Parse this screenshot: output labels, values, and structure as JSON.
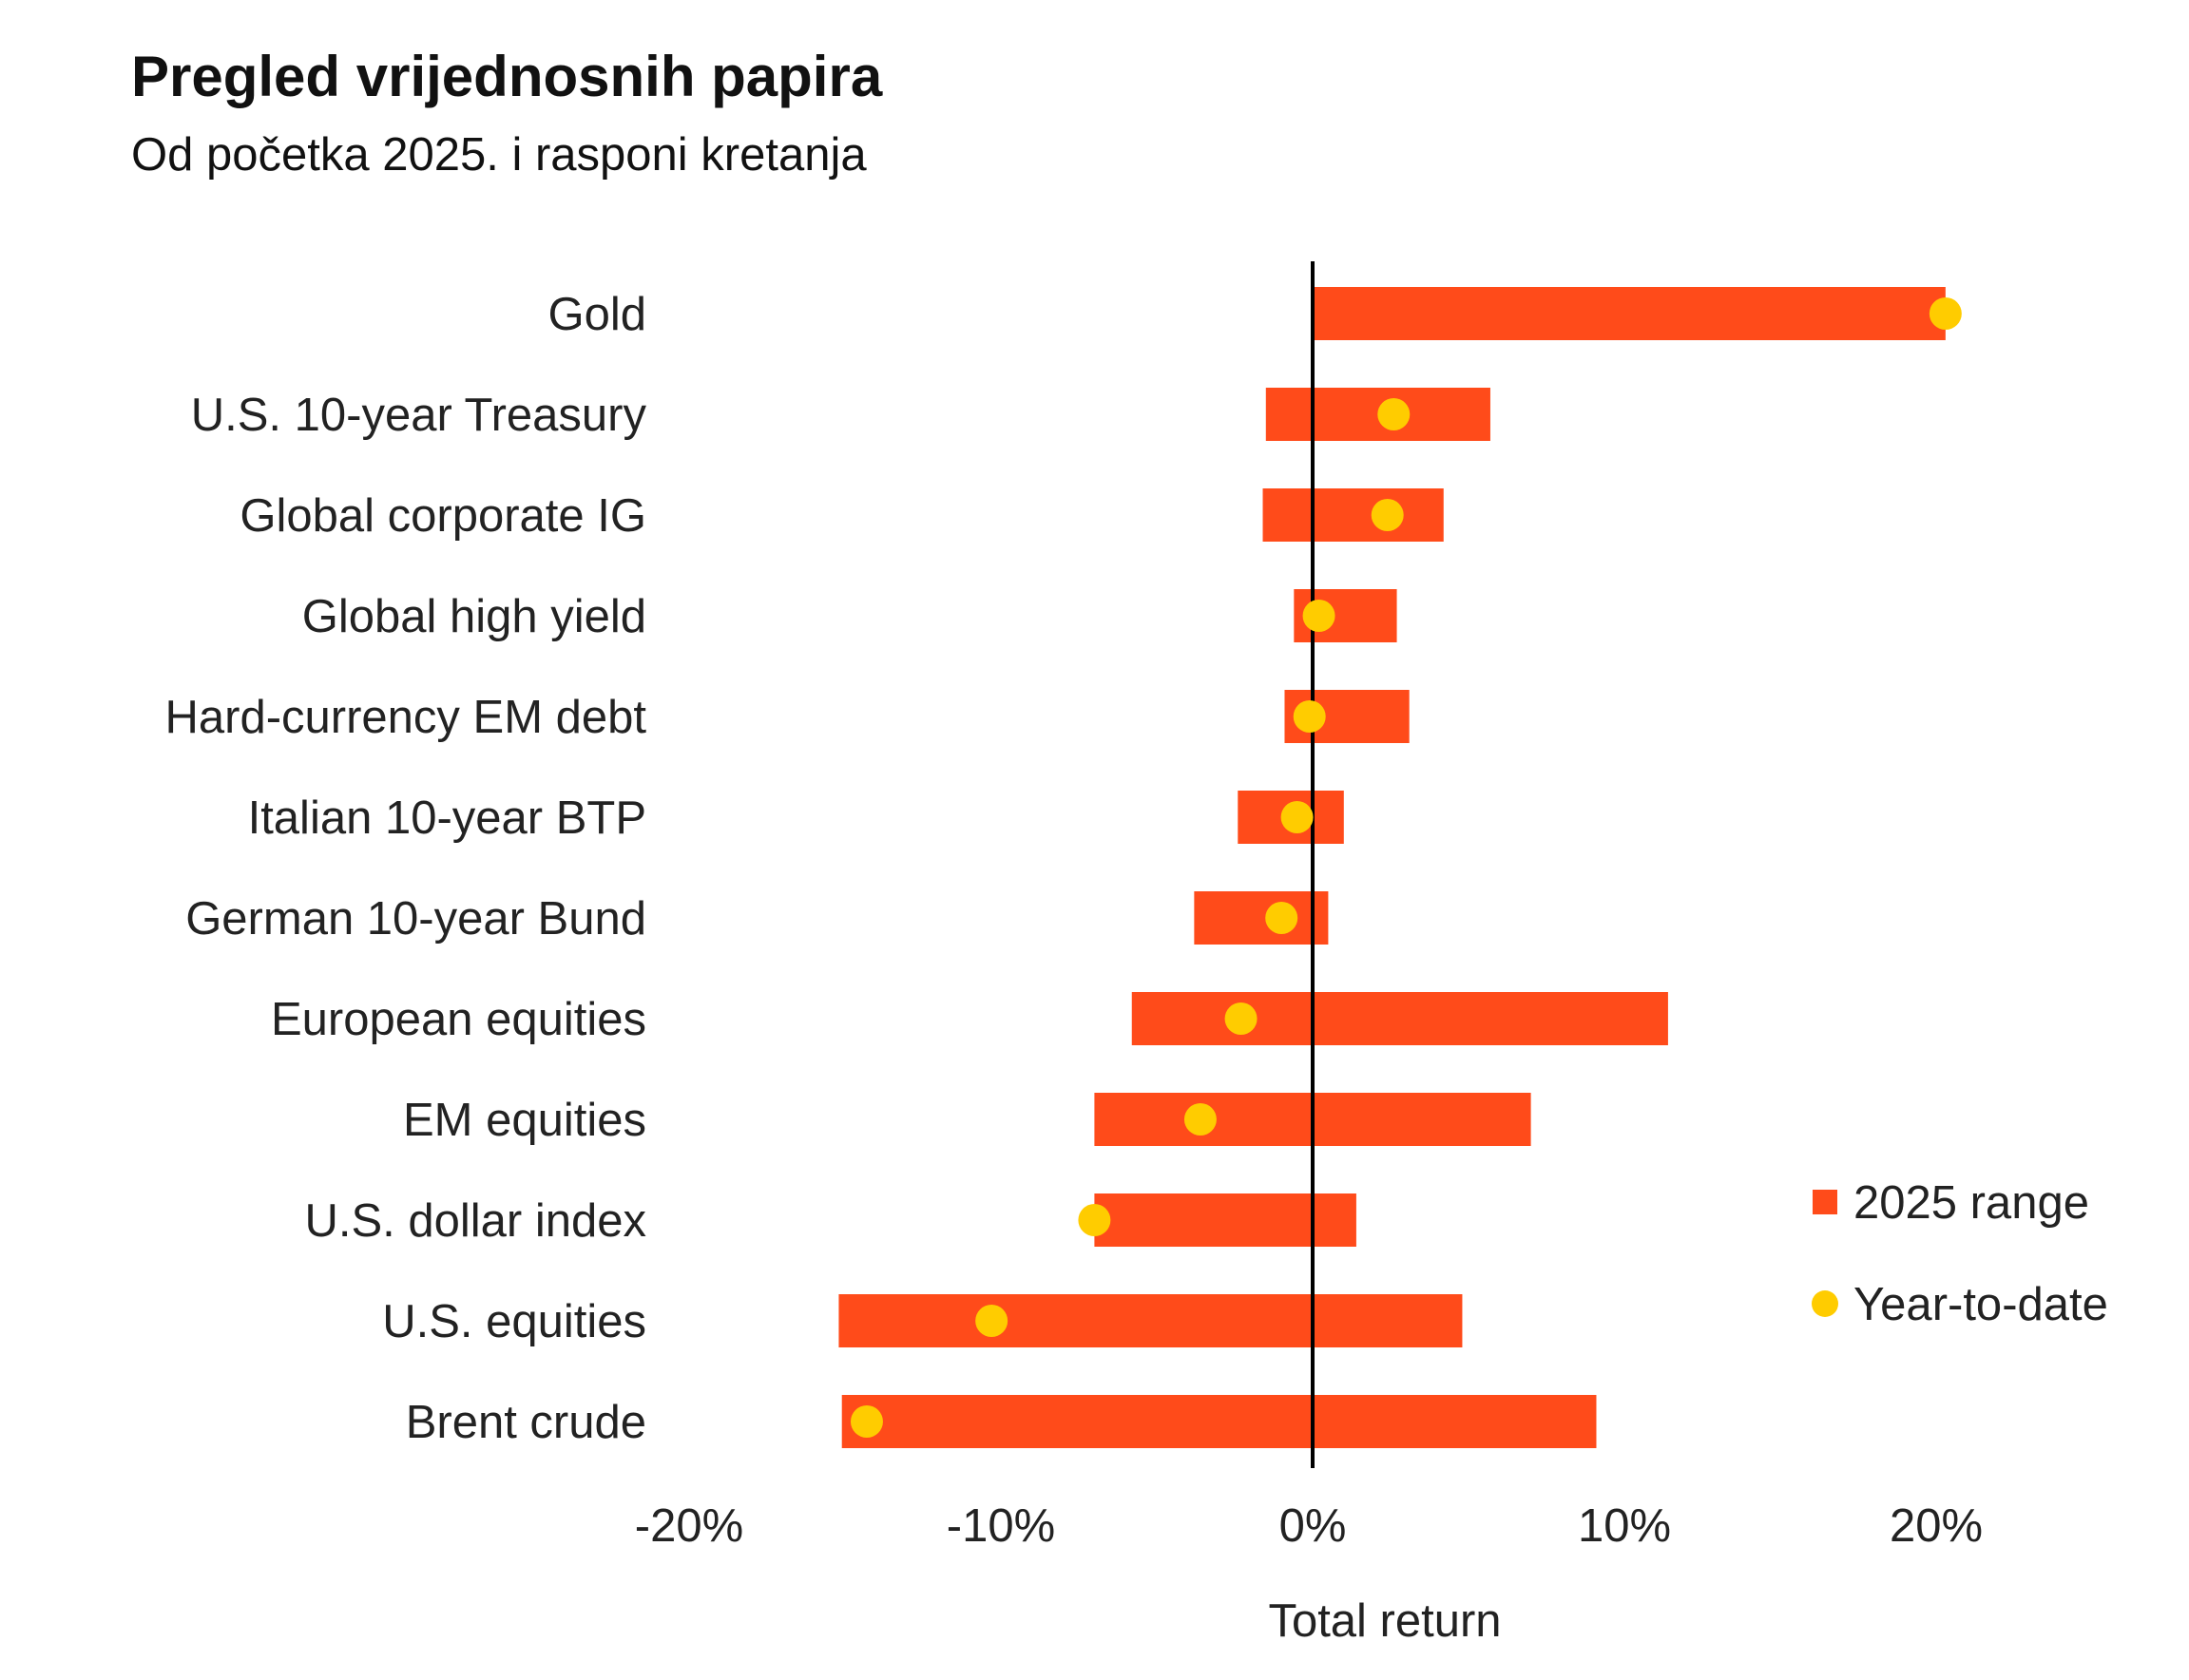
{
  "header": {
    "title": "Pregled vrijednosnih papira",
    "subtitle": "Od početka 2025. i rasponi kretanja"
  },
  "colors": {
    "range": "#FF4B1A",
    "ytd": "#FFCC00",
    "zero_line": "#000000",
    "text": "#222222"
  },
  "chart_data": {
    "type": "bar",
    "orientation": "horizontal",
    "xlabel": "Total return",
    "xlim": [
      -20,
      20
    ],
    "x_ticks": [
      "-20%",
      "-10%",
      "0%",
      "10%",
      "20%"
    ],
    "x_tick_values": [
      -20,
      -10,
      0,
      10,
      20
    ],
    "grid": false,
    "legend": {
      "position": "right",
      "entries": [
        "2025 range",
        "Year-to-date"
      ]
    },
    "categories": [
      "Gold",
      "U.S. 10-year Treasury",
      "Global corporate IG",
      "Global high yield",
      "Hard-currency EM debt",
      "Italian 10-year BTP",
      "German 10-year Bund",
      "European equities",
      "EM equities",
      "U.S. dollar index",
      "U.S. equities",
      "Brent crude"
    ],
    "series": [
      {
        "name": "2025 range",
        "kind": "range",
        "low": [
          0.0,
          -1.5,
          -1.6,
          -0.6,
          -0.9,
          -2.4,
          -3.8,
          -5.8,
          -7.0,
          -7.0,
          -15.2,
          -15.1
        ],
        "high": [
          20.3,
          5.7,
          4.2,
          2.7,
          3.1,
          1.0,
          0.5,
          11.4,
          7.0,
          1.4,
          4.8,
          9.1
        ]
      },
      {
        "name": "Year-to-date",
        "kind": "point",
        "values": [
          20.3,
          2.6,
          2.4,
          0.2,
          -0.1,
          -0.5,
          -1.0,
          -2.3,
          -3.6,
          -7.0,
          -10.3,
          -14.3
        ]
      }
    ]
  }
}
